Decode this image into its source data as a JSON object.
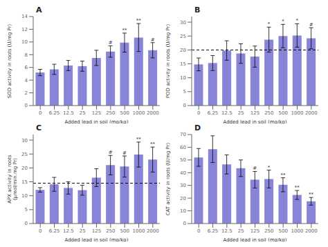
{
  "chart_data": [
    {
      "type": "bar",
      "title": "A",
      "categories": [
        "0",
        "6.25",
        "12.5",
        "25",
        "125",
        "250",
        "500",
        "1000",
        "2000"
      ],
      "values": [
        5.2,
        5.7,
        6.3,
        6.2,
        7.5,
        8.5,
        9.9,
        10.7,
        8.7
      ],
      "errors": [
        0.5,
        0.8,
        0.8,
        0.8,
        1.2,
        0.9,
        1.5,
        2.2,
        1.2
      ],
      "annotations": [
        {
          "category": "250",
          "text": "#"
        },
        {
          "category": "500",
          "text": "**"
        },
        {
          "category": "1000",
          "text": "**"
        },
        {
          "category": "2000",
          "text": "#"
        }
      ],
      "xlabel": "Added lead in soil (mg/kg)",
      "ylabel": "SOD activity in roots (U/mg Pr)",
      "ylim": [
        0,
        14
      ],
      "yticks": [
        0,
        2,
        4,
        6,
        8,
        10,
        12,
        14
      ],
      "color": "#8884d8",
      "grid": false
    },
    {
      "type": "bar",
      "title": "B",
      "categories": [
        "0",
        "6.25",
        "12.5",
        "25",
        "125",
        "250",
        "500",
        "1000",
        "2000"
      ],
      "values": [
        14.8,
        15.3,
        19.8,
        18.7,
        17.6,
        23.7,
        25.0,
        25.2,
        24.2
      ],
      "errors": [
        2.3,
        2.7,
        3.5,
        3.5,
        3.8,
        4.5,
        4.2,
        4.2,
        3.8
      ],
      "annotations": [
        {
          "category": "250",
          "text": "*"
        },
        {
          "category": "500",
          "text": "*"
        },
        {
          "category": "1000",
          "text": "*"
        },
        {
          "category": "2000",
          "text": "#"
        }
      ],
      "xlabel": "Added lead in soil (mg/kg)",
      "ylabel": "POD activity in roots (U/mg Pr)",
      "ylim": [
        0,
        32
      ],
      "yticks": [
        0,
        5,
        10,
        15,
        20,
        25,
        30
      ],
      "hline": 20.0,
      "color": "#8884d8",
      "grid": false
    },
    {
      "type": "bar",
      "title": "C",
      "categories": [
        "0",
        "6.25",
        "12.5",
        "25",
        "125",
        "250",
        "500",
        "1000",
        "2000"
      ],
      "values": [
        12.1,
        14.1,
        12.8,
        12.0,
        16.5,
        21.0,
        20.5,
        24.8,
        23.0
      ],
      "errors": [
        0.8,
        2.5,
        2.2,
        1.8,
        3.2,
        3.5,
        3.8,
        4.5,
        4.5
      ],
      "annotations": [
        {
          "category": "250",
          "text": "#"
        },
        {
          "category": "500",
          "text": "#"
        },
        {
          "category": "1000",
          "text": "**"
        },
        {
          "category": "2000",
          "text": "**"
        }
      ],
      "xlabel": "Added lead in soil (mg/kg)",
      "ylabel": "APX activity in roots\n(μmol/min.mg Pr)",
      "ylim": [
        0,
        32
      ],
      "yticks": [
        0,
        5,
        10,
        15,
        20,
        25,
        30
      ],
      "hline": 14.5,
      "color": "#8884d8",
      "grid": false
    },
    {
      "type": "bar",
      "title": "D",
      "categories": [
        "0",
        "6.25",
        "12.5",
        "25",
        "125",
        "250",
        "500",
        "1000",
        "2000"
      ],
      "values": [
        52.0,
        58.5,
        46.5,
        43.5,
        34.5,
        35.0,
        30.5,
        22.5,
        17.5
      ],
      "errors": [
        7.0,
        10.5,
        7.5,
        6.5,
        6.5,
        7.0,
        5.5,
        3.5,
        3.0
      ],
      "annotations": [
        {
          "category": "125",
          "text": "#"
        },
        {
          "category": "250",
          "text": "*"
        },
        {
          "category": "500",
          "text": "**"
        },
        {
          "category": "1000",
          "text": "**"
        },
        {
          "category": "2000",
          "text": "**"
        }
      ],
      "xlabel": "Added lead in soil (mg/kg)",
      "ylabel": "CAT activity in roots (U/mg Pr)",
      "ylim": [
        0,
        70
      ],
      "yticks": [
        0,
        10,
        20,
        30,
        40,
        50,
        60,
        70
      ],
      "color": "#8884d8",
      "grid": false
    }
  ]
}
